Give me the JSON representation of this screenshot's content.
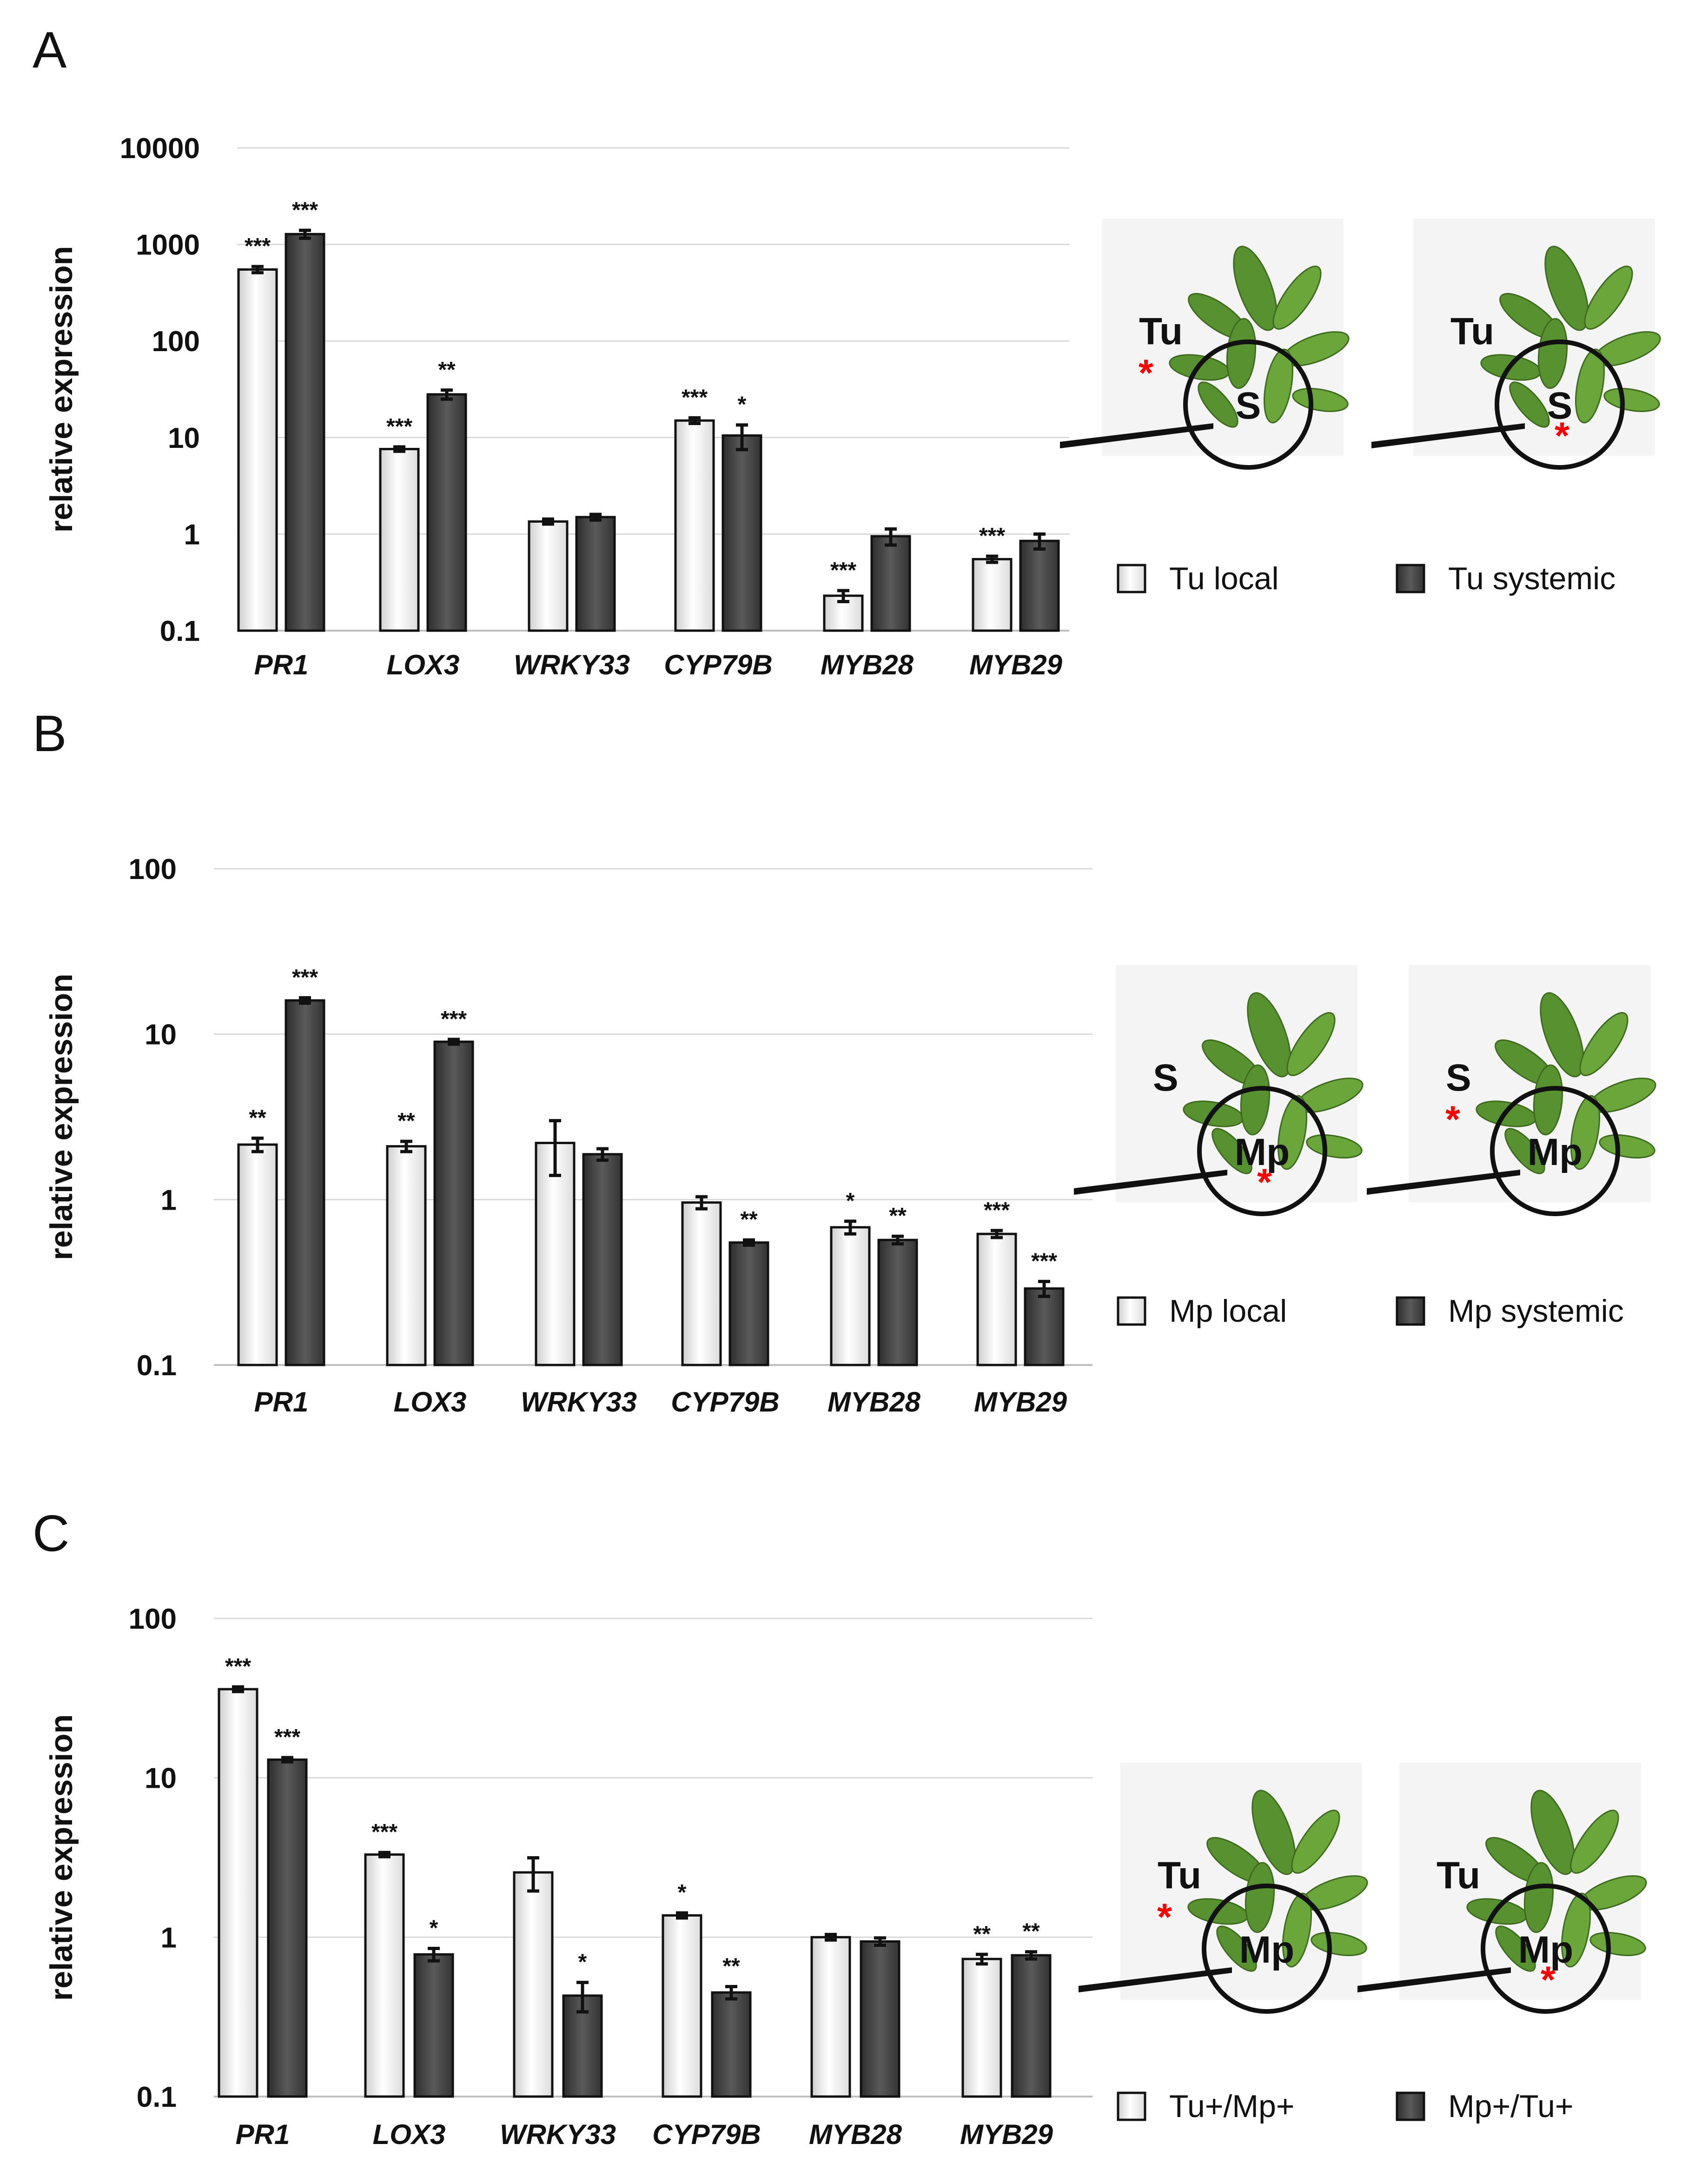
{
  "colors": {
    "local": "#ededed",
    "systemic": "#4a4a4a",
    "outline": "#111111",
    "marker": "#ff0000",
    "leaf": "#5f9a34"
  },
  "chart_data": [
    {
      "type": "bar",
      "panel": "A",
      "scale": "log",
      "ylabel": "relative expression",
      "yticks": [
        "0.1",
        "1",
        "10",
        "100",
        "1000",
        "10000"
      ],
      "ylim": [
        0.1,
        10000
      ],
      "categories": [
        "PR1",
        "LOX3",
        "WRKY33",
        "CYP79B",
        "MYB28",
        "MYB29"
      ],
      "series": [
        {
          "name": "Tu local",
          "kind": "local",
          "values": [
            550,
            7.6,
            1.35,
            15,
            0.23,
            0.55
          ],
          "errors": [
            40,
            0.4,
            0.08,
            1.0,
            0.03,
            0.04
          ],
          "sig": [
            "***",
            "***",
            "",
            "***",
            "***",
            "***"
          ]
        },
        {
          "name": "Tu systemic",
          "kind": "systemic",
          "values": [
            1280,
            28,
            1.5,
            10.5,
            0.95,
            0.85
          ],
          "errors": [
            120,
            3.0,
            0.1,
            3.0,
            0.18,
            0.15
          ],
          "sig": [
            "***",
            "**",
            "",
            "*",
            "",
            ""
          ]
        }
      ],
      "plants": [
        {
          "top_label": "Tu",
          "circle_label": "S",
          "marker_position": "near Tu"
        },
        {
          "top_label": "Tu",
          "circle_label": "S",
          "marker_position": "in circle"
        }
      ]
    },
    {
      "type": "bar",
      "panel": "B",
      "scale": "log",
      "ylabel": "relative expression",
      "yticks": [
        "0.1",
        "1",
        "10",
        "100"
      ],
      "ylim": [
        0.1,
        100
      ],
      "categories": [
        "PR1",
        "LOX3",
        "WRKY33",
        "CYP79B",
        "MYB28",
        "MYB29"
      ],
      "series": [
        {
          "name": "Mp local",
          "kind": "local",
          "values": [
            2.15,
            2.1,
            2.2,
            0.96,
            0.68,
            0.62
          ],
          "errors": [
            0.2,
            0.15,
            0.8,
            0.08,
            0.06,
            0.03
          ],
          "sig": [
            "**",
            "**",
            "",
            "",
            "*",
            "***"
          ]
        },
        {
          "name": "Mp systemic",
          "kind": "systemic",
          "values": [
            16,
            9,
            1.88,
            0.55,
            0.57,
            0.29
          ],
          "errors": [
            0.6,
            0.3,
            0.15,
            0.02,
            0.03,
            0.03
          ],
          "sig": [
            "***",
            "***",
            "",
            "**",
            "**",
            "***"
          ]
        }
      ],
      "plants": [
        {
          "top_label": "S",
          "circle_label": "Mp",
          "marker_position": "in circle"
        },
        {
          "top_label": "S",
          "circle_label": "Mp",
          "marker_position": "near top label"
        }
      ]
    },
    {
      "type": "bar",
      "panel": "C",
      "scale": "log",
      "ylabel": "relative expression",
      "yticks": [
        "0.1",
        "1",
        "10",
        "100"
      ],
      "ylim": [
        0.1,
        100
      ],
      "categories": [
        "PR1",
        "LOX3",
        "WRKY33",
        "CYP79B",
        "MYB28",
        "MYB29"
      ],
      "series": [
        {
          "name": "Tu+/Mp+",
          "kind": "local",
          "values": [
            36,
            3.3,
            2.55,
            1.37,
            1.0,
            0.73
          ],
          "errors": [
            1.2,
            0.1,
            0.6,
            0.05,
            0.04,
            0.05
          ],
          "sig": [
            "***",
            "***",
            "",
            "*",
            "",
            "**"
          ]
        },
        {
          "name": "Mp+/Tu+",
          "kind": "systemic",
          "values": [
            13,
            0.78,
            0.43,
            0.45,
            0.94,
            0.77
          ],
          "errors": [
            0.4,
            0.07,
            0.09,
            0.04,
            0.05,
            0.04
          ],
          "sig": [
            "***",
            "*",
            "*",
            "**",
            "",
            "**"
          ]
        }
      ],
      "plants": [
        {
          "top_label": "Tu",
          "circle_label": "Mp",
          "marker_position": "near top label"
        },
        {
          "top_label": "Tu",
          "circle_label": "Mp",
          "marker_position": "in circle"
        }
      ]
    }
  ]
}
